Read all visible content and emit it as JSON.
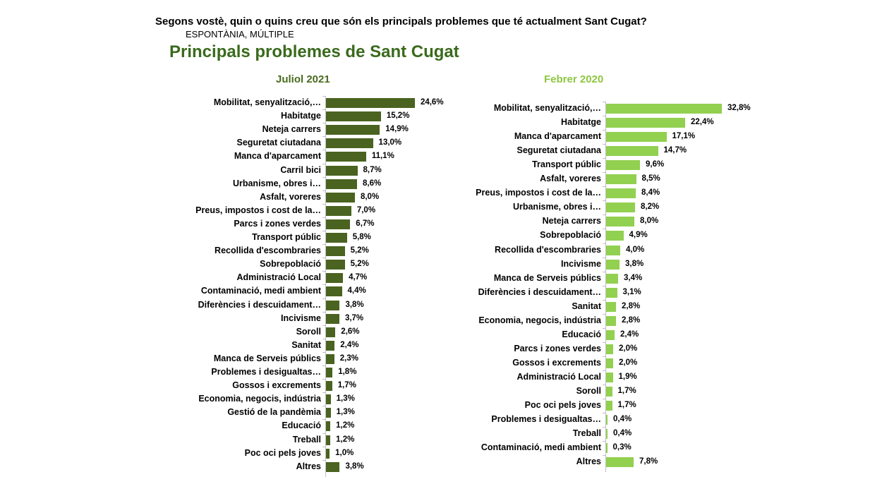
{
  "header": {
    "question": "Segons vostè, quin o quins creu que són els principals problemes que té actualment Sant Cugat?",
    "method": "ESPONTÀNIA, MÚLTIPLE",
    "title": "Principals problemes de Sant Cugat"
  },
  "colors": {
    "left_bar": "#4a6320",
    "right_bar": "#92d050",
    "title_green": "#3a6a1c"
  },
  "chart_data": [
    {
      "type": "bar",
      "orientation": "horizontal",
      "title": "Juliol 2021",
      "categories": [
        "Mobilitat, senyalització,…",
        "Habitatge",
        "Neteja carrers",
        "Seguretat ciutadana",
        "Manca d'aparcament",
        "Carril bici",
        "Urbanisme, obres i…",
        "Asfalt, voreres",
        "Preus, impostos i cost de la…",
        "Parcs i zones verdes",
        "Transport públic",
        "Recollida d'escombraries",
        "Sobrepoblació",
        "Administració Local",
        "Contaminació, medi ambient",
        "Diferències i descuidament…",
        "Incivisme",
        "Soroll",
        "Sanitat",
        "Manca de Serveis públics",
        "Problemes i desigualtas…",
        "Gossos i excrements",
        "Economia, negocis, indústria",
        "Gestió de la pandèmia",
        "Educació",
        "Treball",
        "Poc oci pels joves",
        "Altres"
      ],
      "values": [
        24.6,
        15.2,
        14.9,
        13.0,
        11.1,
        8.7,
        8.6,
        8.0,
        7.0,
        6.7,
        5.8,
        5.2,
        5.2,
        4.7,
        4.4,
        3.8,
        3.7,
        2.6,
        2.4,
        2.3,
        1.8,
        1.7,
        1.3,
        1.3,
        1.2,
        1.2,
        1.0,
        3.8
      ],
      "value_labels": [
        "24,6%",
        "15,2%",
        "14,9%",
        "13,0%",
        "11,1%",
        "8,7%",
        "8,6%",
        "8,0%",
        "7,0%",
        "6,7%",
        "5,8%",
        "5,2%",
        "5,2%",
        "4,7%",
        "4,4%",
        "3,8%",
        "3,7%",
        "2,6%",
        "2,4%",
        "2,3%",
        "1,8%",
        "1,7%",
        "1,3%",
        "1,3%",
        "1,2%",
        "1,2%",
        "1,0%",
        "3,8%"
      ],
      "xlim": [
        0,
        25
      ]
    },
    {
      "type": "bar",
      "orientation": "horizontal",
      "title": "Febrer 2020",
      "categories": [
        "Mobilitat, senyalització,…",
        "Habitatge",
        "Manca d'aparcament",
        "Seguretat ciutadana",
        "Transport públic",
        "Asfalt, voreres",
        "Preus, impostos i cost de la…",
        "Urbanisme, obres i…",
        "Neteja carrers",
        "Sobrepoblació",
        "Recollida d'escombraries",
        "Incivisme",
        "Manca de Serveis públics",
        "Diferències i descuidament…",
        "Sanitat",
        "Economia, negocis, indústria",
        "Educació",
        "Parcs i zones verdes",
        "Gossos i excrements",
        "Administració Local",
        "Soroll",
        "Poc oci pels joves",
        "Problemes i desigualtas…",
        "Treball",
        "Contaminació, medi ambient",
        "Altres"
      ],
      "values": [
        32.8,
        22.4,
        17.1,
        14.7,
        9.6,
        8.5,
        8.4,
        8.2,
        8.0,
        4.9,
        4.0,
        3.8,
        3.4,
        3.1,
        2.8,
        2.8,
        2.4,
        2.0,
        2.0,
        1.9,
        1.7,
        1.7,
        0.4,
        0.4,
        0.3,
        7.8
      ],
      "value_labels": [
        "32,8%",
        "22,4%",
        "17,1%",
        "14,7%",
        "9,6%",
        "8,5%",
        "8,4%",
        "8,2%",
        "8,0%",
        "4,9%",
        "4,0%",
        "3,8%",
        "3,4%",
        "3,1%",
        "2,8%",
        "2,8%",
        "2,4%",
        "2,0%",
        "2,0%",
        "1,9%",
        "1,7%",
        "1,7%",
        "0,4%",
        "0,4%",
        "0,3%",
        "7,8%"
      ],
      "xlim": [
        0,
        33
      ]
    }
  ]
}
